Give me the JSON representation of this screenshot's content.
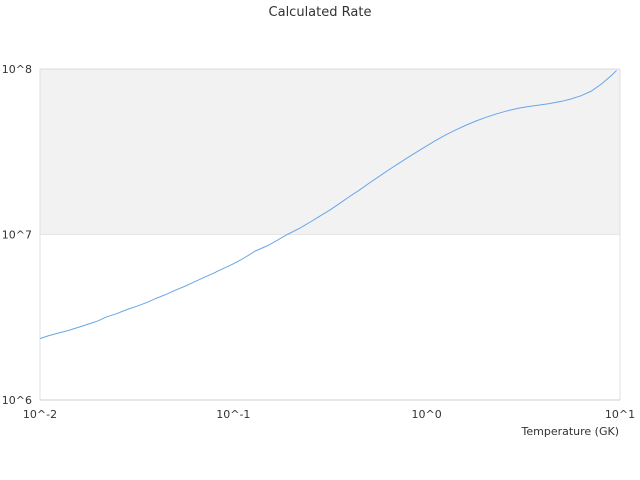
{
  "chart_data": {
    "type": "line",
    "title": "Calculated Rate",
    "xlabel": "Temperature (GK)",
    "ylabel": "",
    "x_scale": "log",
    "y_scale": "log",
    "xlim": [
      0.01,
      10
    ],
    "ylim": [
      1000000,
      100000000
    ],
    "x_ticks": [
      {
        "value": 0.01,
        "label": "10^-2"
      },
      {
        "value": 0.1,
        "label": "10^-1"
      },
      {
        "value": 1,
        "label": "10^0"
      },
      {
        "value": 10,
        "label": "10^1"
      }
    ],
    "y_ticks": [
      {
        "value": 1000000,
        "label": "10^6"
      },
      {
        "value": 10000000,
        "label": "10^7"
      },
      {
        "value": 100000000,
        "label": "10^8"
      }
    ],
    "band": {
      "from": 10000000,
      "to": 100000000,
      "color": "#f2f2f2"
    },
    "grid": false,
    "legend": "none",
    "series": [
      {
        "color": "#6aa5e8",
        "x": [
          0.01,
          0.011,
          0.012,
          0.014,
          0.016,
          0.018,
          0.02,
          0.022,
          0.025,
          0.028,
          0.032,
          0.036,
          0.04,
          0.045,
          0.05,
          0.056,
          0.063,
          0.071,
          0.08,
          0.09,
          0.1,
          0.11,
          0.12,
          0.13,
          0.15,
          0.17,
          0.19,
          0.22,
          0.25,
          0.28,
          0.32,
          0.36,
          0.4,
          0.45,
          0.5,
          0.56,
          0.63,
          0.71,
          0.8,
          0.9,
          1.0,
          1.1,
          1.25,
          1.4,
          1.6,
          1.8,
          2.0,
          2.3,
          2.6,
          3.0,
          3.4,
          3.8,
          4.3,
          5.0,
          5.6,
          6.3,
          7.1,
          8.0,
          9.0,
          9.6
        ],
        "y": [
          2350000,
          2440000,
          2510000,
          2630000,
          2760000,
          2890000,
          3010000,
          3170000,
          3330000,
          3510000,
          3700000,
          3900000,
          4120000,
          4350000,
          4600000,
          4860000,
          5180000,
          5520000,
          5880000,
          6280000,
          6650000,
          7050000,
          7500000,
          7950000,
          8550000,
          9270000,
          10000000,
          10900000,
          11900000,
          12900000,
          14200000,
          15600000,
          17000000,
          18600000,
          20300000,
          22200000,
          24400000,
          26700000,
          29200000,
          31800000,
          34300000,
          36700000,
          39900000,
          42600000,
          45800000,
          48500000,
          50800000,
          53600000,
          55800000,
          58000000,
          59500000,
          60500000,
          61800000,
          63800000,
          66000000,
          69000000,
          73500000,
          81000000,
          91000000,
          98000000
        ]
      }
    ]
  }
}
